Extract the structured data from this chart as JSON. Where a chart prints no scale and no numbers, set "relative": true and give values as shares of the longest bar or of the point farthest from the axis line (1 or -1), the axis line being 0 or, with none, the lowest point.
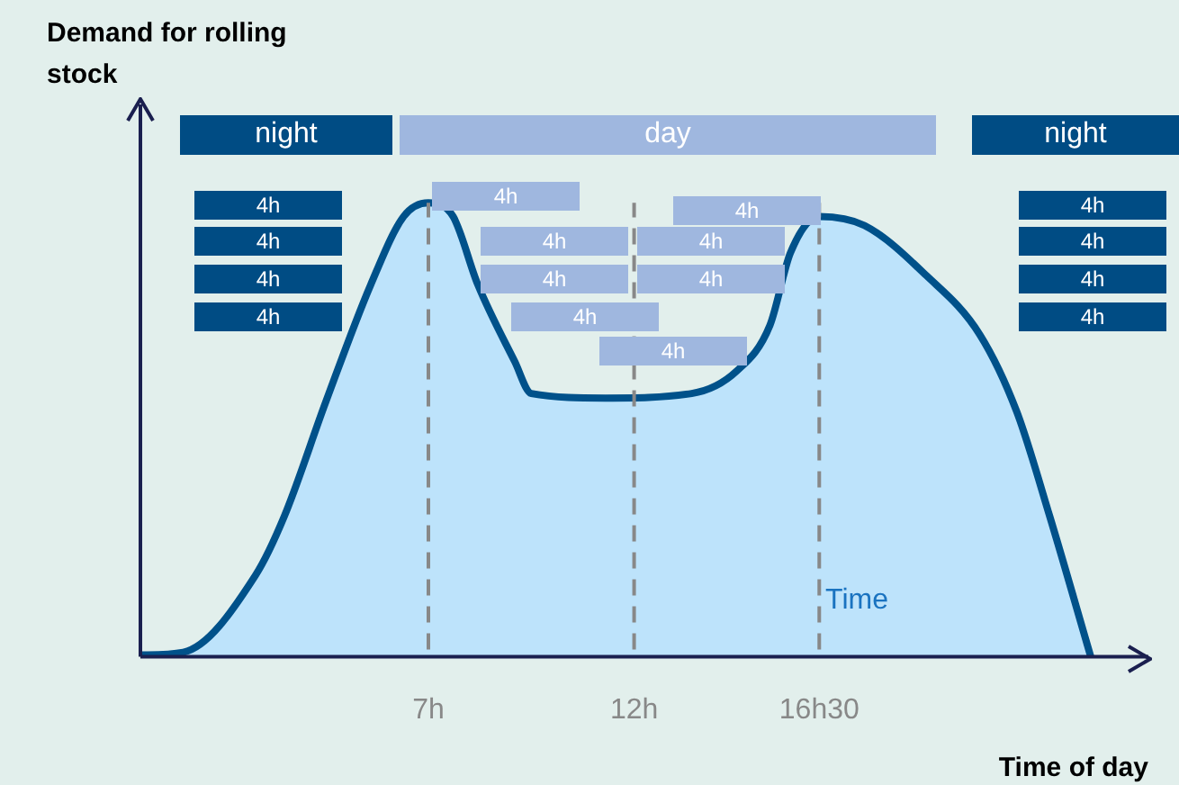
{
  "chart_data": {
    "type": "area",
    "relative": true,
    "ylabel": "Demand for rolling\nstock",
    "xlabel": "Time of day",
    "x": [
      0,
      1.04,
      2.8,
      3.5,
      4.5,
      5.6,
      6.4,
      7,
      7.6,
      8.2,
      9.1,
      9.5,
      11.3,
      13.4,
      14.5,
      15.3,
      15.8,
      16.5,
      17.6,
      19.1,
      20.4,
      21.3,
      22.1,
      23.1
    ],
    "series": [
      {
        "color": "#00518a",
        "values": [
          0.004,
          0.01,
          0.18,
          0.31,
          0.56,
          0.82,
          0.97,
          1,
          0.97,
          0.82,
          0.65,
          0.58,
          0.57,
          0.58,
          0.63,
          0.73,
          0.89,
          0.97,
          0.95,
          0.84,
          0.71,
          0.54,
          0.31,
          0
        ]
      }
    ],
    "xlim": [
      0,
      24.5
    ],
    "xticks": [
      {
        "value": 7,
        "label": "7h"
      },
      {
        "value": 12,
        "label": "12h"
      },
      {
        "value": 16.5,
        "label": "16h30"
      }
    ],
    "ref_lines": [
      {
        "axis": "x",
        "value": 7,
        "label": null,
        "color": "#888888",
        "line_style": "dashed"
      },
      {
        "axis": "x",
        "value": 12,
        "label": null,
        "color": "#888888",
        "line_style": "dashed"
      },
      {
        "axis": "x",
        "value": 16.5,
        "label": null,
        "color": "#888888",
        "line_style": "dashed"
      }
    ],
    "annotations": [
      "night",
      "day",
      "night",
      "4h",
      "4h",
      "4h",
      "4h",
      "4h",
      "4h",
      "4h",
      "4h",
      "4h",
      "4h",
      "4h",
      "4h",
      "4h",
      "4h",
      "4h",
      "4h",
      "Time"
    ],
    "legend": false,
    "marker": "none"
  }
}
